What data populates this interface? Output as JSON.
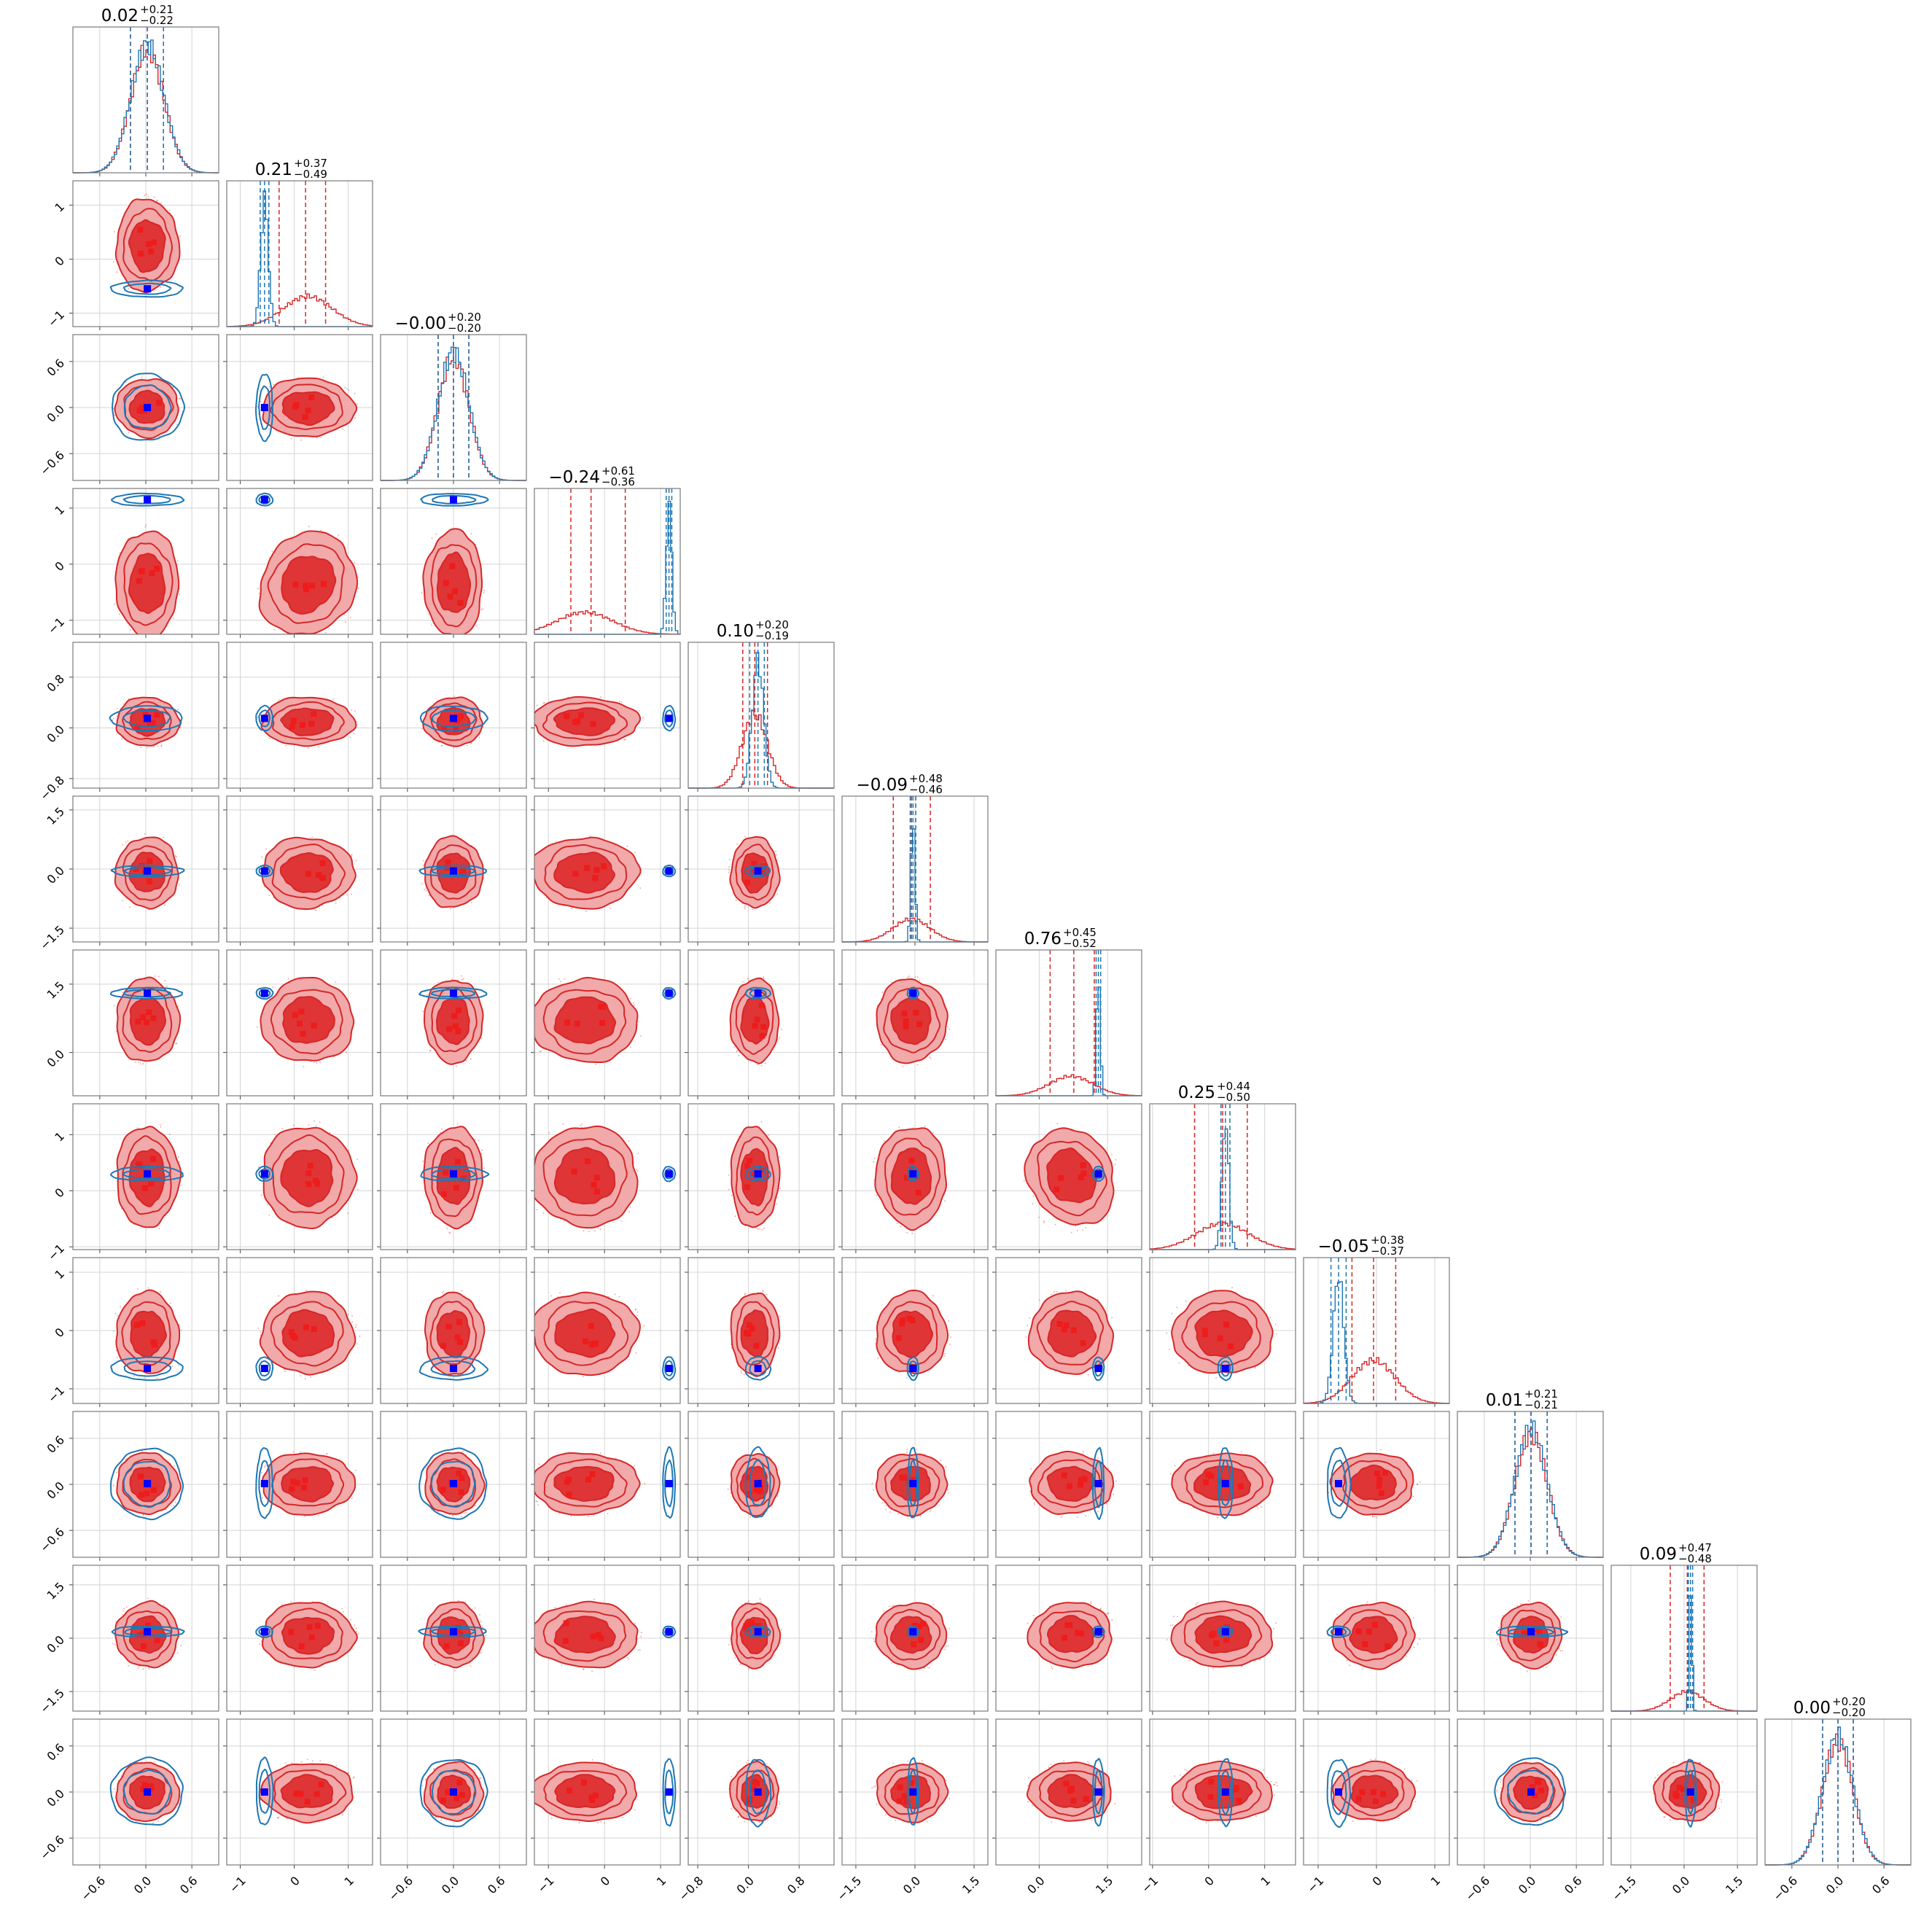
{
  "colors": {
    "posterior_a": "#d62728",
    "posterior_a_fill_outer": "#f1a9aa",
    "posterior_a_fill_inner": "#df3536",
    "posterior_b": "#1f77b4",
    "truth_marker": "#0000ff",
    "grid": "#d4d4d4"
  },
  "chart_data": {
    "type": "corner",
    "n_params": 12,
    "grid": true,
    "titles": [
      {
        "median": "0.02",
        "plus": "+0.21",
        "minus": "−0.22"
      },
      {
        "median": "0.21",
        "plus": "+0.37",
        "minus": "−0.49"
      },
      {
        "median": "−0.00",
        "plus": "+0.20",
        "minus": "−0.20"
      },
      {
        "median": "−0.24",
        "plus": "+0.61",
        "minus": "−0.36"
      },
      {
        "median": "0.10",
        "plus": "+0.20",
        "minus": "−0.19"
      },
      {
        "median": "−0.09",
        "plus": "+0.48",
        "minus": "−0.46"
      },
      {
        "median": "0.76",
        "plus": "+0.45",
        "minus": "−0.52"
      },
      {
        "median": "0.25",
        "plus": "+0.44",
        "minus": "−0.50"
      },
      {
        "median": "−0.05",
        "plus": "+0.38",
        "minus": "−0.37"
      },
      {
        "median": "0.01",
        "plus": "+0.21",
        "minus": "−0.21"
      },
      {
        "median": "0.09",
        "plus": "+0.47",
        "minus": "−0.48"
      },
      {
        "median": "0.00",
        "plus": "+0.20",
        "minus": "−0.20"
      }
    ],
    "params": [
      {
        "range": [
          -0.95,
          0.95
        ],
        "ticks": [
          -0.6,
          0.0,
          0.6
        ],
        "tick_labels": [
          "−0.6",
          "0.0",
          "0.6"
        ],
        "a": {
          "mu": 0.02,
          "sigma": 0.215,
          "q": [
            -0.2,
            0.02,
            0.23
          ]
        },
        "b": {
          "mu": 0.02,
          "sigma": 0.215,
          "q": [
            -0.2,
            0.02,
            0.23
          ]
        },
        "truth": 0.02,
        "b_ring": "circle"
      },
      {
        "range": [
          -1.25,
          1.45
        ],
        "ticks": [
          -1,
          0,
          1
        ],
        "tick_labels": [
          "−1",
          "0",
          "1"
        ],
        "a": {
          "mu": 0.25,
          "sigma": 0.45,
          "q": [
            -0.28,
            0.21,
            0.58
          ]
        },
        "b": {
          "mu": -0.55,
          "sigma": 0.07,
          "q": [
            -0.63,
            -0.55,
            -0.47
          ]
        },
        "truth": -0.55,
        "b_ring": "narrow"
      },
      {
        "range": [
          -0.95,
          0.95
        ],
        "ticks": [
          -0.6,
          0.0,
          0.6
        ],
        "tick_labels": [
          "−0.6",
          "0.0",
          "0.6"
        ],
        "a": {
          "mu": 0.0,
          "sigma": 0.2,
          "q": [
            -0.2,
            0.0,
            0.2
          ]
        },
        "b": {
          "mu": 0.0,
          "sigma": 0.2,
          "q": [
            -0.2,
            0.0,
            0.2
          ]
        },
        "truth": 0.0,
        "b_ring": "circle"
      },
      {
        "range": [
          -1.25,
          1.35
        ],
        "ticks": [
          -1,
          0,
          1
        ],
        "tick_labels": [
          "−1",
          "0",
          "1"
        ],
        "a": {
          "mu": -0.35,
          "sigma": 0.5,
          "q": [
            -0.6,
            -0.24,
            0.37
          ]
        },
        "b": {
          "mu": 1.15,
          "sigma": 0.05,
          "q": [
            1.1,
            1.15,
            1.2
          ]
        },
        "truth": 1.15,
        "b_ring": "narrow"
      },
      {
        "range": [
          -0.95,
          1.35
        ],
        "ticks": [
          -0.8,
          0.0,
          0.8
        ],
        "tick_labels": [
          "−0.8",
          "0.0",
          "0.8"
        ],
        "a": {
          "mu": 0.1,
          "sigma": 0.2,
          "q": [
            -0.09,
            0.1,
            0.3
          ]
        },
        "b": {
          "mu": 0.15,
          "sigma": 0.09,
          "q": [
            0.02,
            0.15,
            0.25
          ]
        },
        "truth": 0.15,
        "b_ring": "narrow"
      },
      {
        "range": [
          -1.85,
          1.85
        ],
        "ticks": [
          -1.5,
          0.0,
          1.5
        ],
        "tick_labels": [
          "−1.5",
          "0.0",
          "1.5"
        ],
        "a": {
          "mu": -0.09,
          "sigma": 0.47,
          "q": [
            -0.55,
            -0.09,
            0.39
          ]
        },
        "b": {
          "mu": -0.05,
          "sigma": 0.05,
          "q": [
            -0.12,
            -0.05,
            0.02
          ]
        },
        "truth": -0.05,
        "b_ring": "narrow"
      },
      {
        "range": [
          -0.95,
          2.25
        ],
        "ticks": [
          0.0,
          1.5
        ],
        "tick_labels": [
          "0.0",
          "1.5"
        ],
        "a": {
          "mu": 0.7,
          "sigma": 0.48,
          "q": [
            0.24,
            0.76,
            1.21
          ]
        },
        "b": {
          "mu": 1.3,
          "sigma": 0.04,
          "q": [
            1.25,
            1.3,
            1.35
          ]
        },
        "truth": 1.3,
        "b_ring": "narrow"
      },
      {
        "range": [
          -1.05,
          1.55
        ],
        "ticks": [
          -1,
          0,
          1
        ],
        "tick_labels": [
          "−1",
          "0",
          "1"
        ],
        "a": {
          "mu": 0.25,
          "sigma": 0.47,
          "q": [
            -0.25,
            0.25,
            0.69
          ]
        },
        "b": {
          "mu": 0.3,
          "sigma": 0.06,
          "q": [
            0.22,
            0.3,
            0.38
          ]
        },
        "truth": 0.3,
        "b_ring": "narrow"
      },
      {
        "range": [
          -1.25,
          1.25
        ],
        "ticks": [
          -1,
          0,
          1
        ],
        "tick_labels": [
          "−1",
          "0",
          "1"
        ],
        "a": {
          "mu": -0.05,
          "sigma": 0.37,
          "q": [
            -0.42,
            -0.05,
            0.33
          ]
        },
        "b": {
          "mu": -0.65,
          "sigma": 0.09,
          "q": [
            -0.78,
            -0.65,
            -0.52
          ]
        },
        "truth": -0.65,
        "b_ring": "narrow"
      },
      {
        "range": [
          -0.95,
          0.95
        ],
        "ticks": [
          -0.6,
          0.0,
          0.6
        ],
        "tick_labels": [
          "−0.6",
          "0.0",
          "0.6"
        ],
        "a": {
          "mu": 0.01,
          "sigma": 0.21,
          "q": [
            -0.2,
            0.01,
            0.22
          ]
        },
        "b": {
          "mu": 0.01,
          "sigma": 0.21,
          "q": [
            -0.2,
            0.01,
            0.22
          ]
        },
        "truth": 0.01,
        "b_ring": "circle"
      },
      {
        "range": [
          -2.05,
          2.05
        ],
        "ticks": [
          -1.5,
          0.0,
          1.5
        ],
        "tick_labels": [
          "−1.5",
          "0.0",
          "1.5"
        ],
        "a": {
          "mu": 0.09,
          "sigma": 0.48,
          "q": [
            -0.39,
            0.09,
            0.56
          ]
        },
        "b": {
          "mu": 0.18,
          "sigma": 0.04,
          "q": [
            0.12,
            0.18,
            0.24
          ]
        },
        "truth": 0.18,
        "b_ring": "narrow"
      },
      {
        "range": [
          -0.95,
          0.95
        ],
        "ticks": [
          -0.6,
          0.0,
          0.6
        ],
        "tick_labels": [
          "−0.6",
          "0.0",
          "0.6"
        ],
        "a": {
          "mu": 0.0,
          "sigma": 0.2,
          "q": [
            -0.2,
            0.0,
            0.2
          ]
        },
        "b": {
          "mu": 0.0,
          "sigma": 0.2,
          "q": [
            -0.2,
            0.0,
            0.2
          ]
        },
        "truth": 0.0,
        "b_ring": "circle"
      }
    ]
  }
}
